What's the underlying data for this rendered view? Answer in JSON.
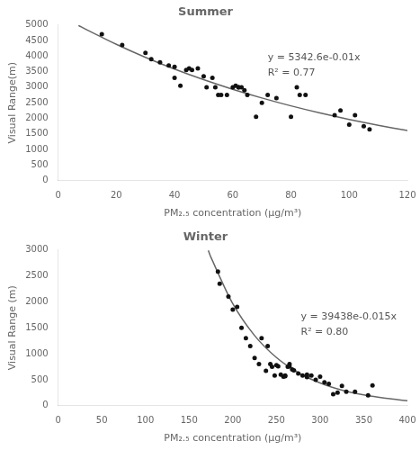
{
  "chart_data": [
    {
      "type": "scatter",
      "title": "Summer",
      "x_label": "PM₂.₅ concentration (μg/m³)",
      "y_label": "Visual Range(m)",
      "xlim": [
        0,
        120
      ],
      "ylim": [
        0,
        5000
      ],
      "xticks": [
        0,
        20,
        40,
        60,
        80,
        100,
        120
      ],
      "yticks": [
        0,
        500,
        1000,
        1500,
        2000,
        2500,
        3000,
        3500,
        4000,
        4500,
        5000
      ],
      "grid": false,
      "series": [
        {
          "type": "scatter",
          "color": "#111111",
          "x": [
            15,
            22,
            30,
            32,
            35,
            38,
            40,
            40,
            42,
            44,
            45,
            46,
            48,
            50,
            51,
            53,
            54,
            55,
            56,
            58,
            60,
            61,
            62,
            62,
            63,
            64,
            65,
            68,
            70,
            72,
            75,
            80,
            82,
            83,
            85,
            95,
            97,
            100,
            102,
            105,
            107
          ],
          "values": [
            4700,
            4350,
            4100,
            3900,
            3800,
            3700,
            3650,
            3300,
            3050,
            3550,
            3600,
            3550,
            3600,
            3350,
            3000,
            3300,
            3000,
            2750,
            2750,
            2750,
            3000,
            3050,
            3000,
            3000,
            3000,
            2900,
            2750,
            2050,
            2500,
            2750,
            2650,
            2050,
            3000,
            2750,
            2750,
            2100,
            2250,
            1800,
            2100,
            1750,
            1650
          ]
        },
        {
          "type": "line",
          "color": "#666666",
          "x": [
            7,
            10,
            20,
            30,
            40,
            50,
            60,
            70,
            80,
            90,
            100,
            110,
            120
          ],
          "values": [
            4981.4,
            4834.2,
            4374.2,
            3957.9,
            3581.2,
            3240.5,
            2932.1,
            2653.1,
            2400.6,
            2172.1,
            1965.4,
            1778.4,
            1609.2
          ]
        }
      ],
      "annotations": [
        {
          "text": [
            "y = 5342.6e-0.01x",
            "R² = 0.77"
          ],
          "x": 72,
          "y": 4100,
          "color": "#555555"
        }
      ]
    },
    {
      "type": "scatter",
      "title": "Winter",
      "x_label": "PM₂.₅ concentration (μg/m³)",
      "y_label": "Visual Range (m)",
      "xlim": [
        0,
        400
      ],
      "ylim": [
        0,
        3000
      ],
      "xticks": [
        0,
        50,
        100,
        150,
        200,
        250,
        300,
        350,
        400
      ],
      "yticks": [
        0,
        500,
        1000,
        1500,
        2000,
        2500,
        3000
      ],
      "grid": false,
      "series": [
        {
          "type": "scatter",
          "color": "#111111",
          "x": [
            183,
            185,
            195,
            200,
            205,
            210,
            215,
            220,
            225,
            230,
            233,
            238,
            240,
            243,
            245,
            248,
            250,
            252,
            255,
            258,
            260,
            260,
            263,
            265,
            265,
            268,
            270,
            275,
            280,
            285,
            285,
            290,
            295,
            300,
            305,
            310,
            315,
            320,
            325,
            330,
            340,
            355,
            360
          ],
          "values": [
            2580,
            2350,
            2100,
            1850,
            1900,
            1500,
            1300,
            1150,
            920,
            800,
            1300,
            670,
            1150,
            800,
            750,
            580,
            780,
            760,
            600,
            560,
            570,
            580,
            750,
            800,
            760,
            700,
            680,
            620,
            580,
            600,
            550,
            580,
            500,
            560,
            450,
            420,
            220,
            250,
            380,
            270,
            270,
            200,
            390
          ]
        },
        {
          "type": "line",
          "color": "#666666",
          "x": [
            172,
            175,
            200,
            225,
            250,
            275,
            300,
            325,
            350,
            375,
            400
          ],
          "values": [
            2988.4,
            2856.9,
            1963.5,
            1349.5,
            927.5,
            637.5,
            438.1,
            301.1,
            206.9,
            142.2,
            97.8
          ]
        }
      ],
      "annotations": [
        {
          "text": [
            "y = 39438e-0.015x",
            "R² = 0.80"
          ],
          "x": 278,
          "y": 1800,
          "color": "#555555"
        }
      ]
    }
  ]
}
